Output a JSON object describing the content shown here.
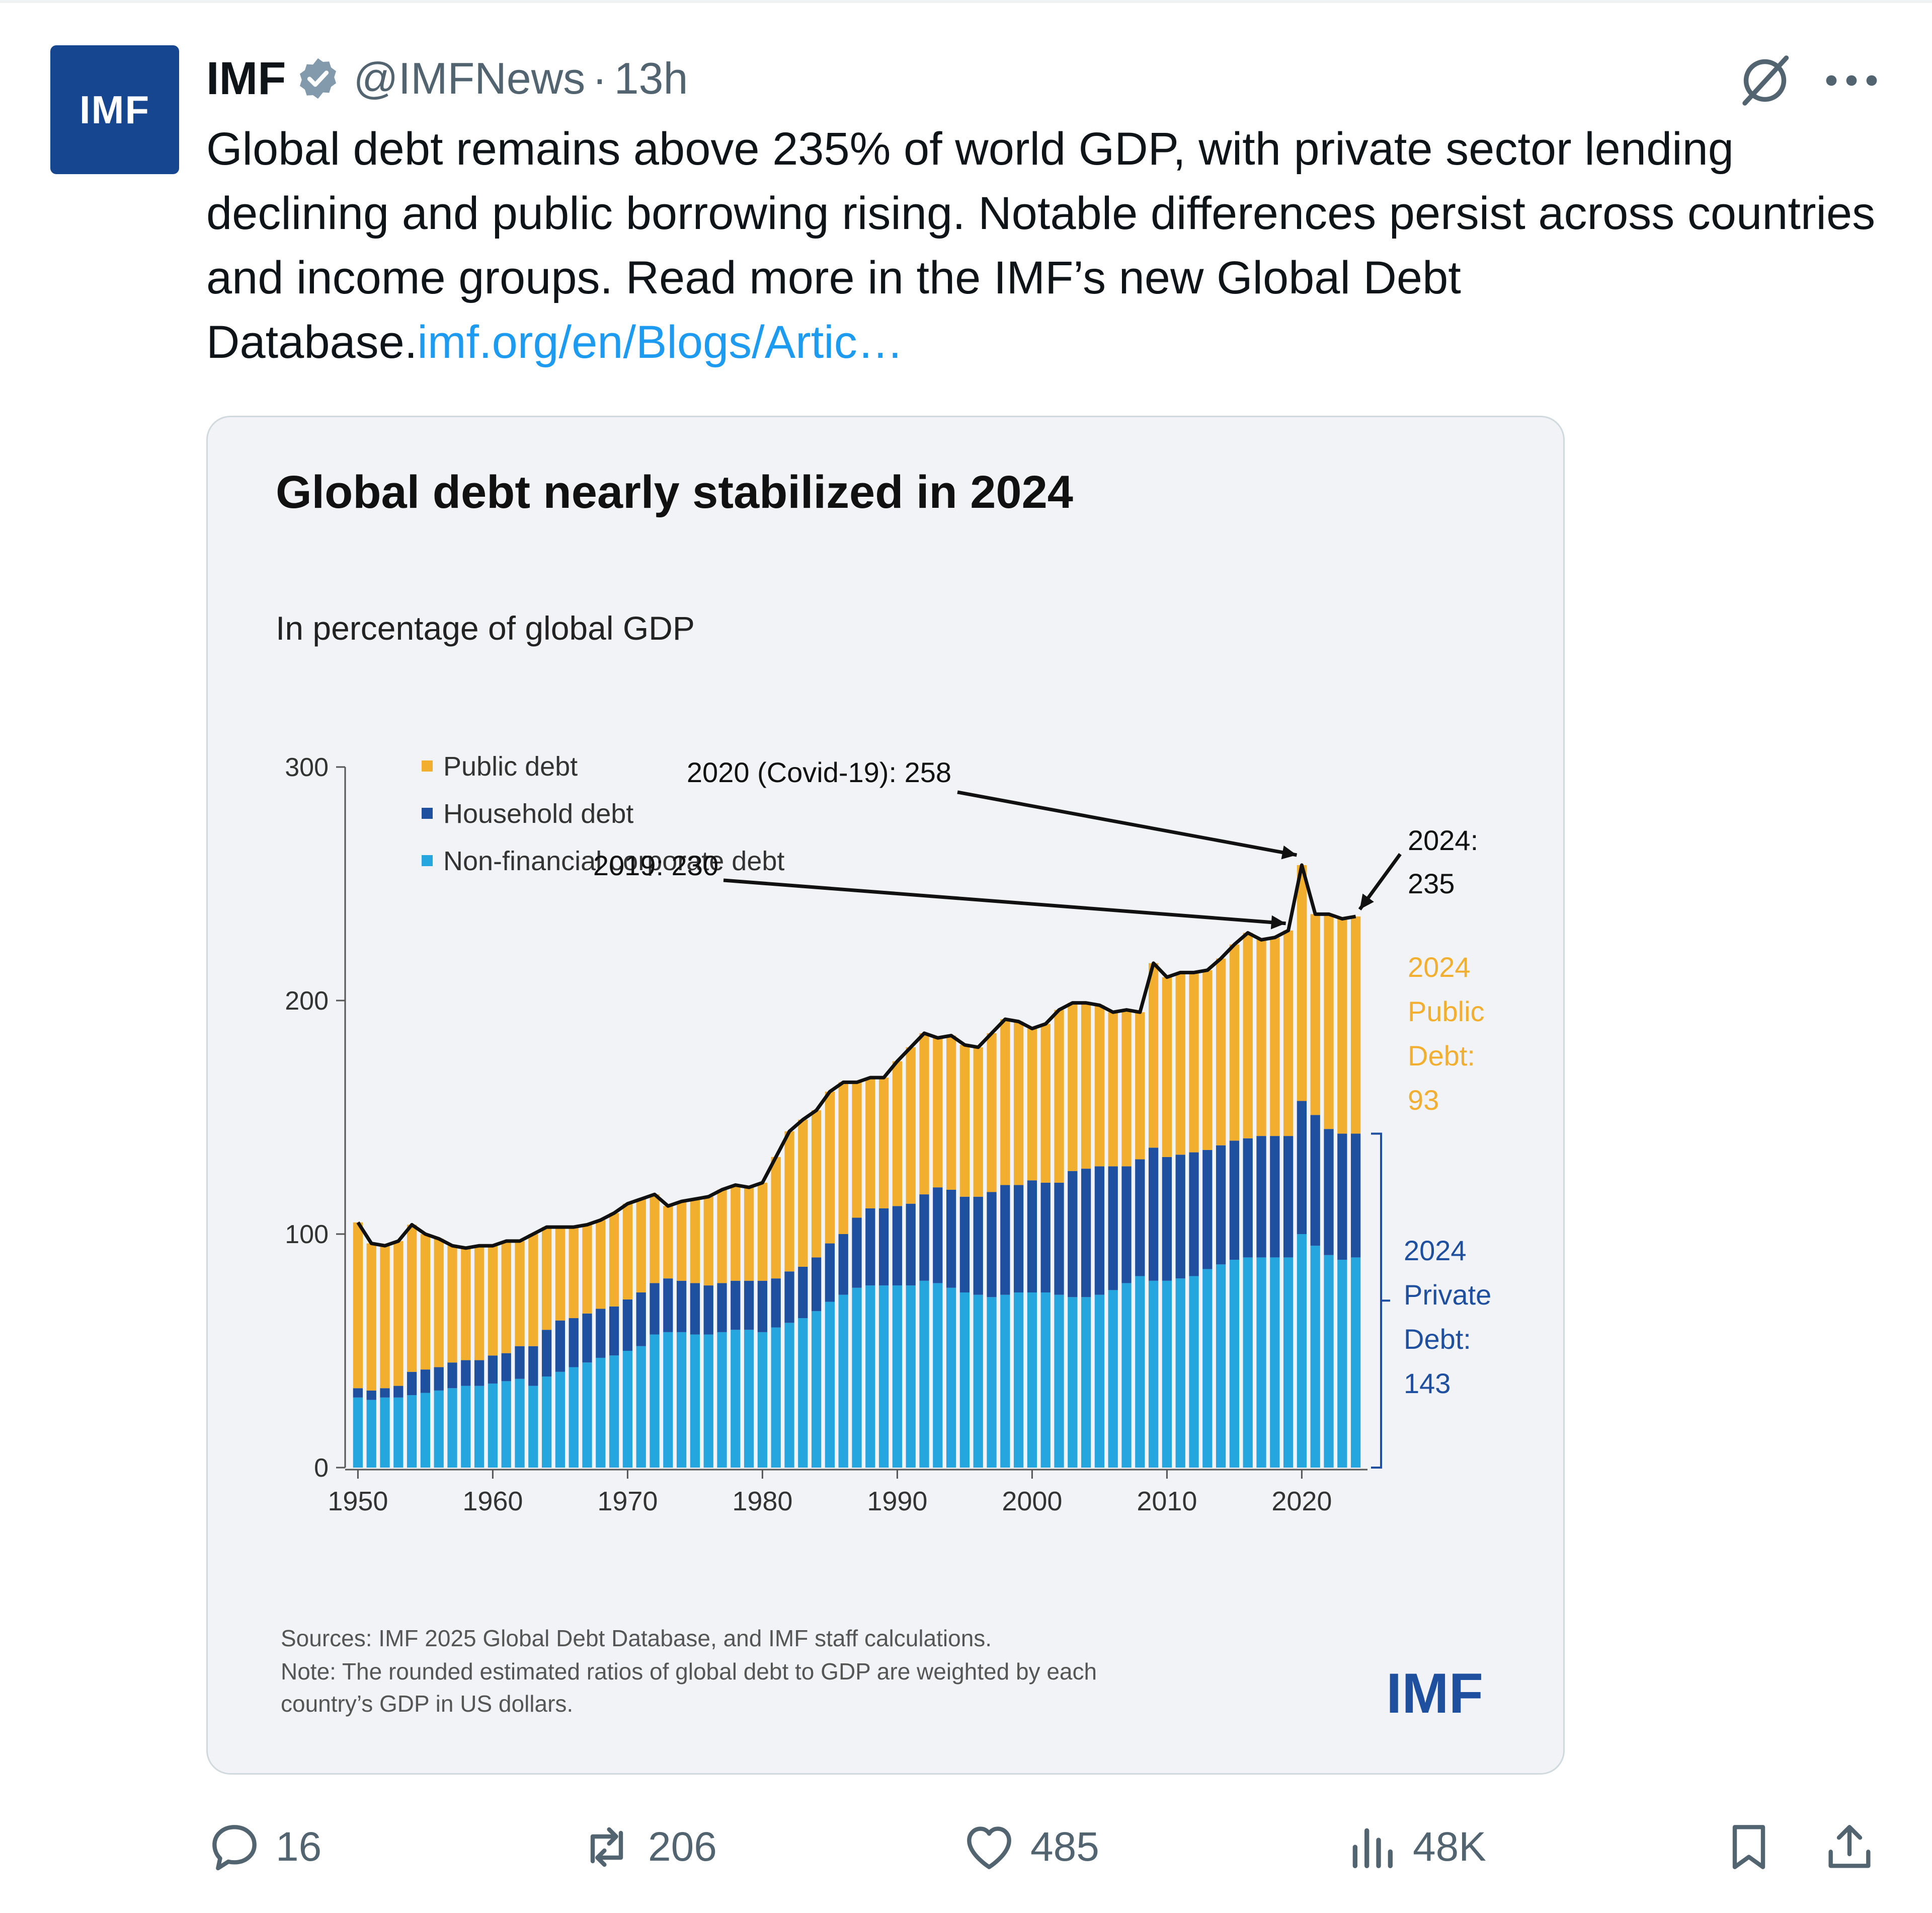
{
  "tweet": {
    "author_name": "IMF",
    "avatar_text": "IMF",
    "handle": "@IMFNews",
    "separator": "·",
    "time": "13h",
    "text": "Global debt remains above 235% of world GDP, with private sector lending declining and public borrowing rising. Notable differences persist across countries and income groups. Read more in the IMF’s new Global Debt Database.",
    "link_text": "imf.org/en/Blogs/Artic…"
  },
  "icons": {
    "verified": "verified-badge-icon",
    "grok": "grok-icon",
    "more": "more-icon",
    "reply": "reply-icon",
    "retweet": "retweet-icon",
    "like": "heart-icon",
    "views": "views-icon",
    "bookmark": "bookmark-icon",
    "share": "share-icon"
  },
  "actions": {
    "replies": "16",
    "retweets": "206",
    "likes": "485",
    "views": "48K"
  },
  "colors": {
    "public": "#f2ae2e",
    "household": "#1f4f9f",
    "corporate": "#26a6df",
    "link": "#1d9bf0",
    "avatar": "#16468f"
  },
  "chart_data": {
    "type": "bar",
    "stacked": true,
    "title": "Global debt nearly stabilized in 2024",
    "subtitle": "In percentage of global GDP",
    "xlim": [
      1950,
      2024
    ],
    "ylim": [
      0,
      300
    ],
    "yticks": [
      0,
      100,
      200,
      300
    ],
    "xticks": [
      1950,
      1960,
      1970,
      1980,
      1990,
      2000,
      2010,
      2020
    ],
    "legend_position": "top-left",
    "legend": [
      "Public debt",
      "Household debt",
      "Non-financial corporate debt"
    ],
    "x": [
      1950,
      1951,
      1952,
      1953,
      1954,
      1955,
      1956,
      1957,
      1958,
      1959,
      1960,
      1961,
      1962,
      1963,
      1964,
      1965,
      1966,
      1967,
      1968,
      1969,
      1970,
      1971,
      1972,
      1973,
      1974,
      1975,
      1976,
      1977,
      1978,
      1979,
      1980,
      1981,
      1982,
      1983,
      1984,
      1985,
      1986,
      1987,
      1988,
      1989,
      1990,
      1991,
      1992,
      1993,
      1994,
      1995,
      1996,
      1997,
      1998,
      1999,
      2000,
      2001,
      2002,
      2003,
      2004,
      2005,
      2006,
      2007,
      2008,
      2009,
      2010,
      2011,
      2012,
      2013,
      2014,
      2015,
      2016,
      2017,
      2018,
      2019,
      2020,
      2021,
      2022,
      2023,
      2024
    ],
    "series": [
      {
        "name": "Non-financial corporate debt",
        "values": [
          30,
          29,
          30,
          30,
          31,
          32,
          33,
          34,
          35,
          35,
          36,
          37,
          38,
          35,
          39,
          41,
          43,
          45,
          47,
          48,
          50,
          52,
          57,
          58,
          58,
          57,
          57,
          58,
          59,
          59,
          58,
          60,
          62,
          64,
          67,
          71,
          74,
          77,
          78,
          78,
          78,
          78,
          80,
          79,
          77,
          75,
          74,
          73,
          74,
          75,
          75,
          75,
          74,
          73,
          73,
          74,
          76,
          79,
          82,
          80,
          80,
          81,
          82,
          85,
          87,
          89,
          90,
          90,
          90,
          90,
          100,
          95,
          91,
          89,
          90
        ]
      },
      {
        "name": "Household debt",
        "values": [
          4,
          4,
          4,
          5,
          10,
          10,
          10,
          11,
          11,
          11,
          12,
          12,
          14,
          17,
          20,
          22,
          21,
          21,
          21,
          21,
          22,
          23,
          22,
          23,
          22,
          22,
          21,
          21,
          21,
          21,
          22,
          21,
          22,
          22,
          23,
          25,
          26,
          30,
          33,
          33,
          34,
          35,
          37,
          41,
          42,
          41,
          42,
          45,
          47,
          46,
          48,
          47,
          48,
          54,
          55,
          55,
          53,
          50,
          50,
          57,
          53,
          53,
          53,
          51,
          51,
          51,
          51,
          52,
          52,
          52,
          57,
          56,
          54,
          54,
          53
        ]
      },
      {
        "name": "Public debt",
        "values": [
          71,
          63,
          61,
          62,
          63,
          58,
          55,
          50,
          48,
          49,
          47,
          48,
          45,
          48,
          44,
          40,
          39,
          38,
          38,
          40,
          41,
          40,
          38,
          31,
          34,
          36,
          38,
          40,
          41,
          40,
          42,
          52,
          60,
          63,
          63,
          65,
          65,
          58,
          56,
          56,
          62,
          67,
          69,
          64,
          66,
          65,
          64,
          68,
          71,
          70,
          65,
          68,
          74,
          72,
          71,
          69,
          66,
          67,
          63,
          79,
          77,
          78,
          77,
          77,
          80,
          84,
          88,
          84,
          85,
          88,
          101,
          86,
          92,
          92,
          93
        ]
      }
    ],
    "annotations": {
      "peak_2020": "2020 (Covid-19): 258",
      "label_2019": "2019: 230",
      "label_2024_a": "2024:",
      "label_2024_b": "235",
      "public_2024": [
        "2024",
        "Public",
        "Debt:",
        "93"
      ],
      "private_2024": [
        "2024",
        "Private",
        "Debt:",
        "143"
      ]
    },
    "footnote": [
      "Sources: IMF 2025 Global Debt Database, and IMF staff calculations.",
      "Note: The rounded estimated ratios of global debt to GDP are weighted by each",
      "country’s GDP in US dollars."
    ],
    "logo_text": "IMF"
  }
}
